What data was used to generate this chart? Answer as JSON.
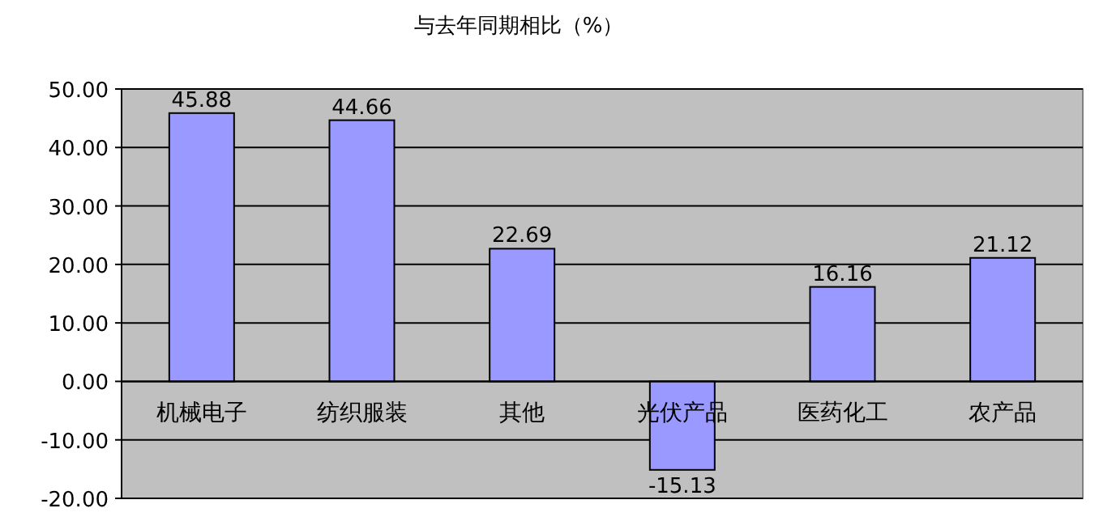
{
  "chart_data": {
    "type": "bar",
    "title": "与去年同期相比（%）",
    "categories": [
      "机械电子",
      "纺织服装",
      "其他",
      "光伏产品",
      "医药化工",
      "农产品"
    ],
    "values": [
      45.88,
      44.66,
      22.69,
      -15.13,
      16.16,
      21.12
    ],
    "color": "#9999ff",
    "ylim": [
      -20,
      50
    ],
    "yticks": [
      {
        "value": -20,
        "label": "-20.00"
      },
      {
        "value": -10,
        "label": "-10.00"
      },
      {
        "value": 0,
        "label": "0.00"
      },
      {
        "value": 10,
        "label": "10.00"
      },
      {
        "value": 20,
        "label": "20.00"
      },
      {
        "value": 30,
        "label": "30.00"
      },
      {
        "value": 40,
        "label": "40.00"
      },
      {
        "value": 50,
        "label": "50.00"
      }
    ],
    "grid": "y",
    "data_labels": true
  }
}
